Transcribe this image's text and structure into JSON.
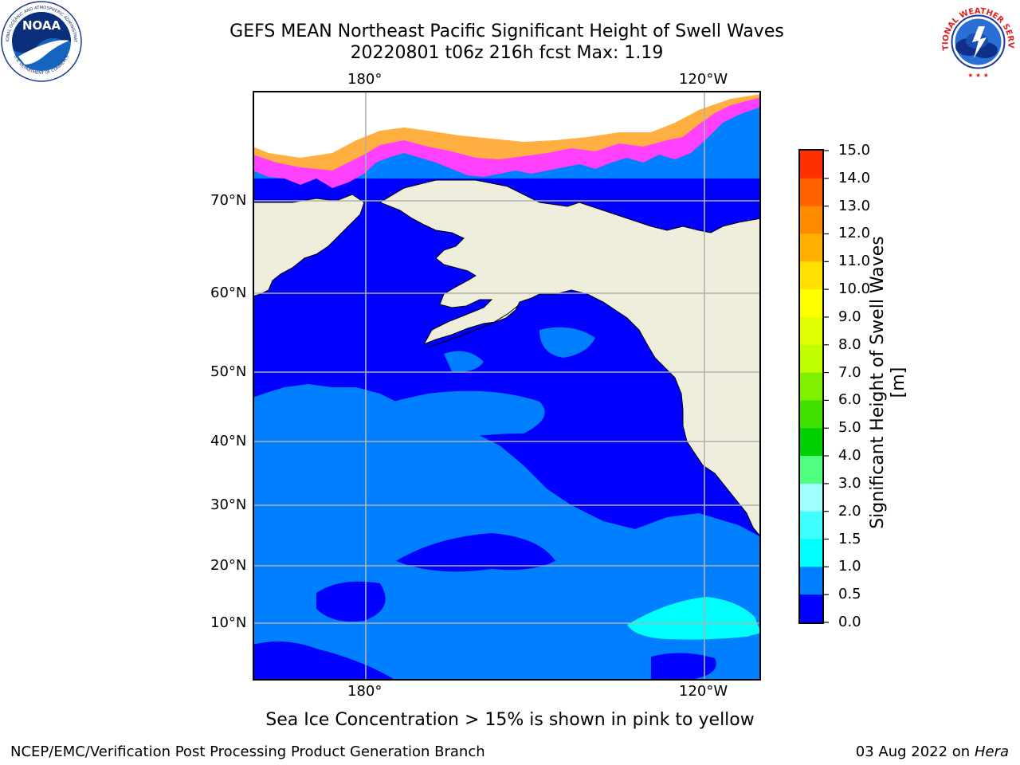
{
  "title": {
    "line1": "GEFS MEAN Northeast Pacific Significant Height of Swell Waves",
    "line2": "20220801 t06z 216h fcst   Max: 1.19"
  },
  "logos": {
    "left": {
      "icon": "noaa-logo-icon",
      "text": "NOAA",
      "ring_text": "NATIONAL OCEANIC AND ATMOSPHERIC ADMINISTRATION",
      "ring_text_bottom": "U.S. DEPARTMENT OF COMMERCE"
    },
    "right": {
      "icon": "nws-logo-icon",
      "ring_text": "NATIONAL WEATHER SERVICE"
    }
  },
  "map": {
    "lon_labels": [
      "180°",
      "120°W"
    ],
    "lat_labels": [
      "70°N",
      "60°N",
      "50°N",
      "40°N",
      "30°N",
      "20°N",
      "10°N"
    ],
    "colors": {
      "land": "#efeedd",
      "coast": "#000000",
      "grid": "#b0b0b0",
      "swell_0_05": "#0000ff",
      "swell_05_10": "#0080ff",
      "swell_15_20": "#00ffff",
      "ice_pink": "#ff40ff",
      "ice_orange": "#ffb040"
    }
  },
  "colorbar": {
    "label": "Significant Height of Swell Waves [m]",
    "ticks": [
      "15.0",
      "14.0",
      "13.0",
      "12.0",
      "11.0",
      "10.0",
      "9.0",
      "8.0",
      "7.0",
      "6.0",
      "5.0",
      "4.0",
      "3.0",
      "2.0",
      "1.5",
      "1.0",
      "0.5",
      "0.0"
    ],
    "colors": [
      "#ff0000",
      "#ff3000",
      "#ff6000",
      "#ff8c00",
      "#ffb000",
      "#ffe000",
      "#ffff00",
      "#e0ff00",
      "#c0ff00",
      "#80f000",
      "#40e000",
      "#00d000",
      "#50ff80",
      "#a0ffff",
      "#40ffff",
      "#00ffff",
      "#0080ff",
      "#0000ff"
    ]
  },
  "footnote": "Sea Ice Concentration > 15% is shown in pink to yellow",
  "credit": {
    "left": "NCEP/EMC/Verification Post Processing Product Generation Branch",
    "right_date": "03 Aug 2022 on",
    "right_machine": "Hera"
  }
}
